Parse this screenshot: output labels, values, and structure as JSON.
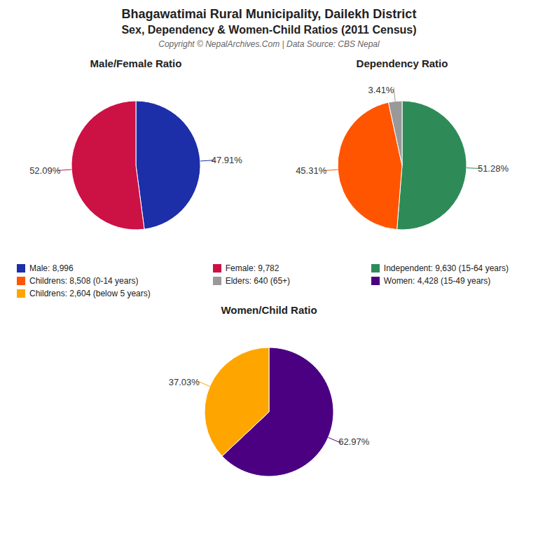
{
  "title": "Bhagawatimai Rural Municipality, Dailekh District",
  "subtitle": "Sex, Dependency & Women-Child Ratios (2011 Census)",
  "annotations": [
    "Copyright © NepalArchives.Com | Data Source: CBS Nepal"
  ],
  "legend": "center",
  "chart_data": [
    {
      "type": "pie",
      "title": "Male/Female Ratio",
      "categories": [
        "Male: 8,996",
        "Female: 9,782"
      ],
      "values": [
        47.91,
        52.09
      ],
      "value_labels": [
        "47.91%",
        "52.09%"
      ],
      "colors": [
        "#1C2EA8",
        "#CC1144"
      ],
      "data_labels": true
    },
    {
      "type": "pie",
      "title": "Dependency Ratio",
      "categories": [
        "Independent: 9,630 (15-64 years)",
        "Childrens: 8,508 (0-14 years)",
        "Elders: 640 (65+)"
      ],
      "values": [
        51.28,
        45.31,
        3.41
      ],
      "value_labels": [
        "51.28%",
        "45.31%",
        "3.41%"
      ],
      "colors": [
        "#2E8B57",
        "#FF5500",
        "#999999"
      ],
      "data_labels": true
    },
    {
      "type": "pie",
      "title": "Women/Child Ratio",
      "categories": [
        "Women: 4,428 (15-49 years)",
        "Childrens: 2,604 (below 5 years)"
      ],
      "values": [
        62.97,
        37.03
      ],
      "value_labels": [
        "62.97%",
        "37.03%"
      ],
      "colors": [
        "#4B0082",
        "#FFA500"
      ],
      "data_labels": true
    }
  ]
}
